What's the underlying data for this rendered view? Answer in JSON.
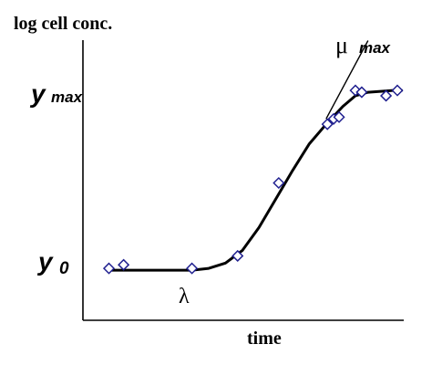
{
  "chart_data": {
    "type": "line",
    "ylabel": "log cell conc.",
    "xlabel": "time",
    "annotations": {
      "y0": "y",
      "y0_sub": "0",
      "ymax": "y",
      "ymax_sub": "max",
      "mu": "μ",
      "mu_sub": "max",
      "lambda": "λ"
    },
    "grid": false,
    "series": [
      {
        "kind": "observed",
        "marker": "diamond",
        "color": "#1f1f8f",
        "points": [
          {
            "x": 0.62,
            "y": 0.02
          },
          {
            "x": 0.97,
            "y": 0.04
          },
          {
            "x": 2.6,
            "y": 0.02
          },
          {
            "x": 3.69,
            "y": 0.09
          },
          {
            "x": 4.67,
            "y": 0.5
          },
          {
            "x": 5.83,
            "y": 0.83
          },
          {
            "x": 5.98,
            "y": 0.86
          },
          {
            "x": 6.11,
            "y": 0.87
          },
          {
            "x": 6.5,
            "y": 1.02
          },
          {
            "x": 6.65,
            "y": 1.01
          },
          {
            "x": 7.23,
            "y": 0.99
          },
          {
            "x": 7.5,
            "y": 1.02
          }
        ]
      },
      {
        "kind": "fitted",
        "color": "#000000",
        "points": [
          {
            "x": 0.6,
            "y": 0.01
          },
          {
            "x": 2.6,
            "y": 0.01
          },
          {
            "x": 3.0,
            "y": 0.02
          },
          {
            "x": 3.4,
            "y": 0.05
          },
          {
            "x": 3.8,
            "y": 0.12
          },
          {
            "x": 4.2,
            "y": 0.25
          },
          {
            "x": 4.6,
            "y": 0.41
          },
          {
            "x": 5.0,
            "y": 0.57
          },
          {
            "x": 5.4,
            "y": 0.72
          },
          {
            "x": 5.8,
            "y": 0.83
          },
          {
            "x": 6.2,
            "y": 0.93
          },
          {
            "x": 6.5,
            "y": 0.99
          },
          {
            "x": 6.8,
            "y": 1.01
          },
          {
            "x": 7.4,
            "y": 1.02
          },
          {
            "x": 7.6,
            "y": 1.02
          }
        ]
      },
      {
        "kind": "tangent",
        "color": "#000000",
        "points": [
          {
            "x": 5.8,
            "y": 0.86
          },
          {
            "x": 6.8,
            "y": 1.3
          }
        ]
      }
    ]
  }
}
